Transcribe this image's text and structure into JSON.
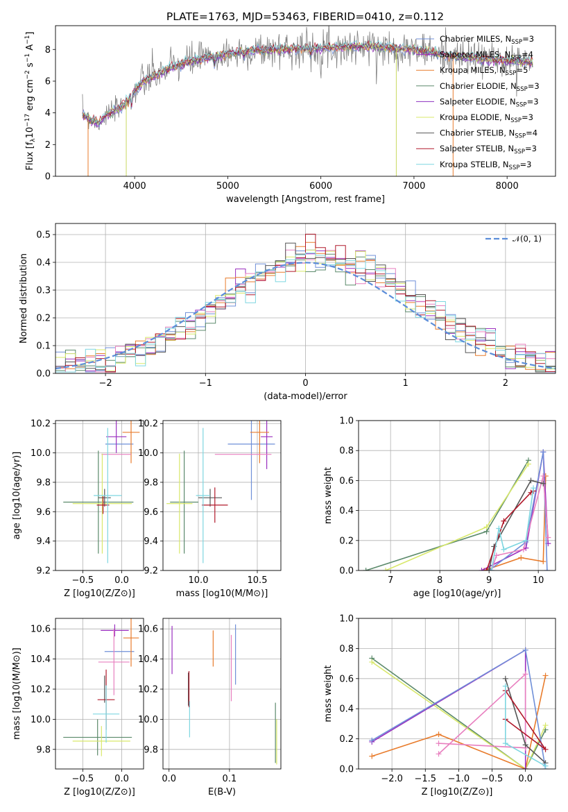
{
  "figure": {
    "title": "PLATE=1763, MJD=53463, FIBERID=0410, z=0.112"
  },
  "chart_data": [
    {
      "id": "spectrum",
      "type": "line",
      "xlabel": "wavelength [Angstrom, rest frame]",
      "ylabel": "Flux [fλ10^-17 erg cm^-2 s^-1 A^-1]",
      "ylabel_parts": [
        "Flux [f",
        "λ",
        "10",
        "−17",
        " erg cm",
        "−2",
        " s",
        "−1",
        " A",
        "−1",
        "]"
      ],
      "xlim": [
        3150,
        8520
      ],
      "ylim": [
        0,
        9.5
      ],
      "xticks": [
        4000,
        5000,
        6000,
        7000,
        8000
      ],
      "yticks": [
        0,
        2,
        4,
        6,
        8
      ],
      "grid": false,
      "legend_position": "right",
      "legend": [
        {
          "label": "Chabrier MILES, N",
          "sub": "SSP",
          "suffix": "=3",
          "color": "#6f8fd8"
        },
        {
          "label": "Salpeter MILES, N",
          "sub": "SSP",
          "suffix": "=4",
          "color": "#9a2fbf"
        },
        {
          "label": "Kroupa MILES, N",
          "sub": "SSP",
          "suffix": "=5",
          "color": "#e87b2b"
        },
        {
          "label": "Chabrier ELODIE, N",
          "sub": "SSP",
          "suffix": "=3",
          "color": "#5b8a6b"
        },
        {
          "label": "Salpeter ELODIE, N",
          "sub": "SSP",
          "suffix": "=3",
          "color": "#8c2fbf"
        },
        {
          "label": "Kroupa ELODIE, N",
          "sub": "SSP",
          "suffix": "=3",
          "color": "#d8e86a"
        },
        {
          "label": "Chabrier STELIB, N",
          "sub": "SSP",
          "suffix": "=4",
          "color": "#555555"
        },
        {
          "label": "Salpeter STELIB, N",
          "sub": "SSP",
          "suffix": "=3",
          "color": "#b0182a"
        },
        {
          "label": "Kroupa STELIB, N",
          "sub": "SSP",
          "suffix": "=3",
          "color": "#7dd6e0"
        }
      ],
      "data_color": "#808080",
      "continuum": [
        [
          3440,
          3.9
        ],
        [
          3600,
          3.3
        ],
        [
          3700,
          3.9
        ],
        [
          3850,
          4.3
        ],
        [
          4000,
          5.4
        ],
        [
          4100,
          6.0
        ],
        [
          4300,
          6.6
        ],
        [
          4500,
          7.1
        ],
        [
          4700,
          7.4
        ],
        [
          4900,
          7.6
        ],
        [
          5200,
          7.9
        ],
        [
          5500,
          8.0
        ],
        [
          6000,
          8.1
        ],
        [
          6500,
          8.2
        ],
        [
          7000,
          8.0
        ],
        [
          7500,
          7.5
        ],
        [
          8000,
          7.3
        ],
        [
          8280,
          7.2
        ]
      ],
      "absorption_lines": [
        [
          3933,
          4.6
        ],
        [
          3968,
          4.2
        ],
        [
          4861,
          6.7
        ],
        [
          5175,
          7.3
        ],
        [
          5890,
          7.5
        ]
      ]
    },
    {
      "id": "residuals",
      "type": "histogram",
      "xlabel": "(data-model)/error",
      "ylabel": "Normed distribution",
      "xlim": [
        -2.5,
        2.5
      ],
      "ylim": [
        0,
        0.54
      ],
      "xticks": [
        -2,
        -1,
        0,
        1,
        2
      ],
      "xtick_labels": [
        "−2",
        "−1",
        "0",
        "1",
        "2"
      ],
      "yticks": [
        0.0,
        0.1,
        0.2,
        0.3,
        0.4,
        0.5
      ],
      "grid": true,
      "legend_position": "top-right",
      "legend_label": "𝒩(0, 1)",
      "normal_color": "#5b8dd9",
      "bin_width": 0.1,
      "bin_start": -2.5
    },
    {
      "id": "age-vs-Z",
      "type": "scatter",
      "xlabel": "Z [log10(Z/Z⊙)]",
      "ylabel": "age  [log10(age/yr)]",
      "xlim": [
        -0.85,
        0.28
      ],
      "ylim": [
        9.2,
        10.22
      ],
      "xticks": [
        -0.5,
        0.0
      ],
      "xtick_labels": [
        "−0.5",
        "0.0"
      ],
      "yticks": [
        9.2,
        9.4,
        9.6,
        9.8,
        10.0,
        10.2
      ],
      "grid": true,
      "points": [
        {
          "x": -0.03,
          "y": 10.06,
          "xerr": 0.18,
          "yerr": 0.0,
          "color": "#6f8fd8"
        },
        {
          "x": -0.07,
          "y": 10.11,
          "xerr": 0.13,
          "yerr": 0.11,
          "color": "#9a2fbf"
        },
        {
          "x": 0.12,
          "y": 10.14,
          "xerr": 0.11,
          "yerr": 0.21,
          "color": "#e87b2b"
        },
        {
          "x": -0.3,
          "y": 9.665,
          "xerr": 0.45,
          "yerr": 0.35,
          "color": "#5b8a6b"
        },
        {
          "x": -0.07,
          "y": 9.99,
          "xerr": 0.19,
          "yerr": 0.0,
          "color": "#e87fbf"
        },
        {
          "x": -0.25,
          "y": 9.655,
          "xerr": 0.38,
          "yerr": 0.34,
          "color": "#d8e86a"
        },
        {
          "x": -0.22,
          "y": 9.695,
          "xerr": 0.08,
          "yerr": 0.06,
          "color": "#555555"
        },
        {
          "x": -0.24,
          "y": 9.645,
          "xerr": 0.08,
          "yerr": 0.06,
          "color": "#b0182a"
        },
        {
          "x": -0.18,
          "y": 9.71,
          "xerr": 0.18,
          "yerr": 0.46,
          "color": "#7dd6e0"
        }
      ]
    },
    {
      "id": "age-vs-mass",
      "type": "scatter",
      "xlabel": "mass [log10(M/M⊙)]",
      "xlim": [
        9.7,
        10.7
      ],
      "ylim": [
        9.2,
        10.22
      ],
      "xticks": [
        10.0,
        10.5
      ],
      "xtick_labels": [
        "10.0",
        "10.5"
      ],
      "yticks": [
        9.2,
        9.4,
        9.6,
        9.8,
        10.0,
        10.2
      ],
      "grid": true,
      "points": [
        {
          "x": 10.45,
          "y": 10.06,
          "xerr": 0.2,
          "yerr": 0.38,
          "color": "#6f8fd8"
        },
        {
          "x": 10.58,
          "y": 10.11,
          "xerr": 0.05,
          "yerr": 0.22,
          "color": "#9a2fbf"
        },
        {
          "x": 10.52,
          "y": 10.14,
          "xerr": 0.08,
          "yerr": 0.21,
          "color": "#e87b2b"
        },
        {
          "x": 9.88,
          "y": 9.665,
          "xerr": 0.12,
          "yerr": 0.35,
          "color": "#5b8a6b"
        },
        {
          "x": 10.38,
          "y": 9.99,
          "xerr": 0.24,
          "yerr": 0.0,
          "color": "#e87fbf"
        },
        {
          "x": 9.84,
          "y": 9.655,
          "xerr": 0.11,
          "yerr": 0.34,
          "color": "#d8e86a"
        },
        {
          "x": 10.1,
          "y": 9.695,
          "xerr": 0.1,
          "yerr": 0.06,
          "color": "#555555"
        },
        {
          "x": 10.14,
          "y": 9.645,
          "xerr": 0.11,
          "yerr": 0.12,
          "color": "#b0182a"
        },
        {
          "x": 10.04,
          "y": 9.71,
          "xerr": 0.06,
          "yerr": 0.46,
          "color": "#7dd6e0"
        }
      ]
    },
    {
      "id": "weight-vs-age",
      "type": "line",
      "xlabel": "age  [log10(age/yr)]",
      "ylabel": "mass weight",
      "xlim": [
        6.35,
        10.35
      ],
      "ylim": [
        0,
        1.0
      ],
      "xticks": [
        7,
        8,
        9,
        10
      ],
      "yticks": [
        0.0,
        0.2,
        0.4,
        0.6,
        0.8,
        1.0
      ],
      "grid": true,
      "series": [
        {
          "color": "#5b8a6b",
          "points": [
            [
              6.5,
              0.0
            ],
            [
              8.95,
              0.26
            ],
            [
              9.8,
              0.735
            ]
          ]
        },
        {
          "color": "#d8e86a",
          "points": [
            [
              6.9,
              0.0
            ],
            [
              8.95,
              0.29
            ],
            [
              9.8,
              0.71
            ]
          ]
        },
        {
          "color": "#e87b2b",
          "points": [
            [
              8.9,
              0.0
            ],
            [
              9.65,
              0.085
            ],
            [
              10.1,
              0.06
            ],
            [
              10.15,
              0.63
            ]
          ]
        },
        {
          "color": "#9a2fbf",
          "points": [
            [
              8.85,
              0.0
            ],
            [
              9.75,
              0.15
            ],
            [
              10.1,
              0.79
            ],
            [
              10.2,
              0.18
            ]
          ]
        },
        {
          "color": "#6f8fd8",
          "points": [
            [
              9.0,
              0.0
            ],
            [
              9.75,
              0.19
            ],
            [
              10.1,
              0.79
            ],
            [
              10.18,
              0.0
            ]
          ]
        },
        {
          "color": "#e87fbf",
          "points": [
            [
              9.05,
              0.0
            ],
            [
              9.15,
              0.1
            ],
            [
              9.7,
              0.14
            ],
            [
              10.1,
              0.63
            ],
            [
              10.2,
              0.22
            ]
          ]
        },
        {
          "color": "#555555",
          "points": [
            [
              9.0,
              0.0
            ],
            [
              9.1,
              0.16
            ],
            [
              9.85,
              0.6
            ],
            [
              10.1,
              0.58
            ]
          ]
        },
        {
          "color": "#b0182a",
          "points": [
            [
              8.95,
              0.0
            ],
            [
              9.3,
              0.33
            ],
            [
              9.85,
              0.52
            ],
            [
              9.9,
              0.53
            ]
          ]
        },
        {
          "color": "#7dd6e0",
          "points": [
            [
              9.05,
              0.0
            ],
            [
              9.2,
              0.28
            ],
            [
              9.3,
              0.14
            ],
            [
              9.75,
              0.2
            ],
            [
              9.9,
              0.55
            ]
          ]
        }
      ]
    },
    {
      "id": "mass-vs-Z",
      "type": "scatter",
      "xlabel": "Z [log10(Z/Z⊙)]",
      "ylabel": "mass [log10(M/M⊙)]",
      "xlim": [
        -0.85,
        0.28
      ],
      "ylim": [
        9.67,
        10.67
      ],
      "xticks": [
        -0.5,
        0.0
      ],
      "xtick_labels": [
        "−0.5",
        "0.0"
      ],
      "yticks": [
        9.8,
        10.0,
        10.2,
        10.4,
        10.6
      ],
      "grid": true,
      "points": [
        {
          "x": -0.03,
          "y": 10.45,
          "xerr": 0.19,
          "yerr": 0.0,
          "color": "#6f8fd8"
        },
        {
          "x": -0.09,
          "y": 10.59,
          "xerr": 0.18,
          "yerr": 0.04,
          "color": "#9a2fbf"
        },
        {
          "x": 0.12,
          "y": 10.54,
          "xerr": 0.1,
          "yerr": 0.19,
          "color": "#e87b2b"
        },
        {
          "x": -0.31,
          "y": 9.88,
          "xerr": 0.44,
          "yerr": 0.12,
          "color": "#5b8a6b"
        },
        {
          "x": -0.1,
          "y": 10.38,
          "xerr": 0.2,
          "yerr": 0.22,
          "color": "#e87fbf"
        },
        {
          "x": -0.26,
          "y": 9.855,
          "xerr": 0.37,
          "yerr": 0.1,
          "color": "#d8e86a"
        },
        {
          "x": -0.22,
          "y": 10.2,
          "xerr": 0.0,
          "yerr": 0.09,
          "color": "#555555"
        },
        {
          "x": -0.2,
          "y": 10.13,
          "xerr": 0.11,
          "yerr": 0.2,
          "color": "#b0182a"
        },
        {
          "x": -0.2,
          "y": 10.035,
          "xerr": 0.17,
          "yerr": 0.19,
          "color": "#7dd6e0"
        }
      ]
    },
    {
      "id": "mass-vs-ebv",
      "type": "scatter",
      "xlabel": "E(B-V)",
      "xlim": [
        -0.01,
        0.185
      ],
      "ylim": [
        9.67,
        10.67
      ],
      "xticks": [
        0.0,
        0.1
      ],
      "xtick_labels": [
        "0.0",
        "0.1"
      ],
      "yticks": [
        9.8,
        10.0,
        10.2,
        10.4,
        10.6
      ],
      "grid": true,
      "points": [
        {
          "x": 0.11,
          "y": 10.43,
          "xerr": 0.0,
          "yerr": 0.2,
          "color": "#6f8fd8"
        },
        {
          "x": 0.005,
          "y": 10.46,
          "xerr": 0.0,
          "yerr": 0.16,
          "color": "#9a2fbf"
        },
        {
          "x": 0.073,
          "y": 10.47,
          "xerr": 0.0,
          "yerr": 0.12,
          "color": "#e87b2b"
        },
        {
          "x": 0.176,
          "y": 9.91,
          "xerr": 0.0,
          "yerr": 0.2,
          "color": "#5b8a6b"
        },
        {
          "x": 0.103,
          "y": 10.34,
          "xerr": 0.0,
          "yerr": 0.22,
          "color": "#e87fbf"
        },
        {
          "x": 0.178,
          "y": 9.85,
          "xerr": 0.0,
          "yerr": 0.15,
          "color": "#d8e86a"
        },
        {
          "x": 0.032,
          "y": 10.2,
          "xerr": 0.0,
          "yerr": 0.11,
          "color": "#555555"
        },
        {
          "x": 0.033,
          "y": 10.2,
          "xerr": 0.0,
          "yerr": 0.12,
          "color": "#b0182a"
        },
        {
          "x": 0.034,
          "y": 10.0,
          "xerr": 0.0,
          "yerr": 0.12,
          "color": "#7dd6e0"
        }
      ]
    },
    {
      "id": "weight-vs-Z",
      "type": "line",
      "xlabel": "Z [log10(Z/Z⊙)]",
      "ylabel": "mass weight",
      "xlim": [
        -2.5,
        0.45
      ],
      "ylim": [
        0,
        1.0
      ],
      "xticks": [
        -2.0,
        -1.5,
        -1.0,
        -0.5,
        0.0
      ],
      "xtick_labels": [
        "−2.0",
        "−1.5",
        "−1.0",
        "−0.5",
        "0.0"
      ],
      "yticks": [
        0.0,
        0.2,
        0.4,
        0.6,
        0.8,
        1.0
      ],
      "grid": true,
      "series": [
        {
          "color": "#5b8a6b",
          "points": [
            [
              -2.3,
              0.735
            ],
            [
              0.0,
              0.0
            ],
            [
              0.3,
              0.26
            ]
          ]
        },
        {
          "color": "#d8e86a",
          "points": [
            [
              -2.3,
              0.71
            ],
            [
              0.0,
              0.0
            ],
            [
              0.3,
              0.29
            ]
          ]
        },
        {
          "color": "#e87b2b",
          "points": [
            [
              -2.3,
              0.085
            ],
            [
              -1.3,
              0.23
            ],
            [
              0.0,
              0.0
            ],
            [
              0.3,
              0.62
            ]
          ]
        },
        {
          "color": "#9a2fbf",
          "points": [
            [
              -2.3,
              0.18
            ],
            [
              0.0,
              0.79
            ],
            [
              0.0,
              0.0
            ]
          ]
        },
        {
          "color": "#6f8fd8",
          "points": [
            [
              -2.3,
              0.19
            ],
            [
              0.0,
              0.79
            ],
            [
              0.3,
              0.0
            ]
          ]
        },
        {
          "color": "#e87fbf",
          "points": [
            [
              -1.3,
              0.1
            ],
            [
              0.0,
              0.63
            ],
            [
              0.0,
              0.14
            ],
            [
              -1.3,
              0.17
            ]
          ]
        },
        {
          "color": "#555555",
          "points": [
            [
              -0.3,
              0.6
            ],
            [
              0.0,
              0.16
            ],
            [
              0.3,
              0.04
            ]
          ]
        },
        {
          "color": "#b0182a",
          "points": [
            [
              -0.3,
              0.52
            ],
            [
              0.3,
              0.13
            ],
            [
              -0.3,
              0.33
            ]
          ]
        },
        {
          "color": "#7dd6e0",
          "points": [
            [
              -0.3,
              0.55
            ],
            [
              -0.3,
              0.17
            ],
            [
              0.3,
              0.02
            ]
          ]
        }
      ]
    }
  ]
}
